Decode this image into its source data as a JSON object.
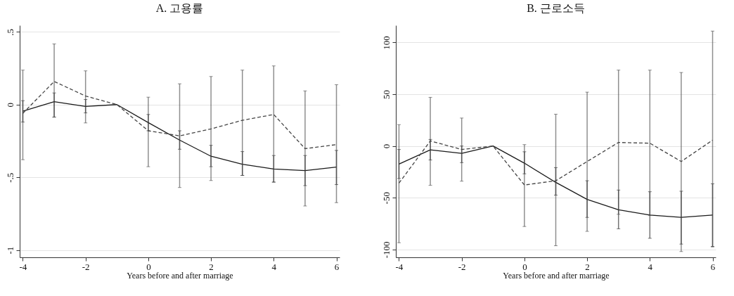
{
  "chart_data": [
    {
      "type": "line",
      "title": "A.  고용률",
      "xlabel": "Years before and after marriage",
      "x": [
        -4,
        -3,
        -2,
        -1,
        0,
        1,
        2,
        3,
        4,
        5,
        6
      ],
      "xlim": [
        -4.1,
        6.1
      ],
      "xticks": [
        -4,
        -2,
        0,
        2,
        4,
        6
      ],
      "ylim": [
        -1.05,
        0.545
      ],
      "yticks": [
        {
          "value": 0.5,
          "label": ".5"
        },
        0,
        {
          "value": -0.5,
          "label": "-.5"
        },
        -1
      ],
      "grid": "y",
      "marker": "none",
      "series": [
        {
          "color": "#1a1a1a",
          "line_style": "solid",
          "values": [
            -0.045,
            0.02,
            -0.013,
            0,
            -0.124,
            -0.244,
            -0.355,
            -0.41,
            -0.443,
            -0.454,
            -0.43
          ],
          "errors": [
            [
              -0.12,
              0.027
            ],
            [
              -0.086,
              0.08
            ],
            [
              -0.057,
              0.035
            ],
            null,
            [
              -0.18,
              -0.068
            ],
            [
              -0.307,
              -0.18
            ],
            [
              -0.427,
              -0.28
            ],
            [
              -0.487,
              -0.323
            ],
            [
              -0.533,
              -0.35
            ],
            [
              -0.557,
              -0.35
            ],
            [
              -0.55,
              -0.315
            ]
          ]
        },
        {
          "color": "#444444",
          "line_style": "dashed",
          "values": [
            -0.06,
            0.159,
            0.059,
            0,
            -0.18,
            -0.215,
            -0.167,
            -0.108,
            -0.068,
            -0.303,
            -0.275
          ],
          "errors": [
            [
              -0.379,
              0.237
            ],
            [
              -0.086,
              0.417
            ],
            [
              -0.126,
              0.232
            ],
            null,
            [
              -0.427,
              0.051
            ],
            [
              -0.57,
              0.143
            ],
            [
              -0.522,
              0.193
            ],
            [
              -0.487,
              0.237
            ],
            [
              -0.533,
              0.266
            ],
            [
              -0.697,
              0.094
            ],
            [
              -0.674,
              0.137
            ]
          ]
        }
      ]
    },
    {
      "type": "line",
      "title": "B.  근로소득",
      "xlabel": "Years before and after marriage",
      "x": [
        -4,
        -3,
        -2,
        -1,
        0,
        1,
        2,
        3,
        4,
        5,
        6
      ],
      "xlim": [
        -4.1,
        6.1
      ],
      "xticks": [
        -4,
        -2,
        0,
        2,
        4,
        6
      ],
      "ylim": [
        -107.6,
        116.6
      ],
      "yticks": [
        100,
        50,
        0,
        -50,
        -100
      ],
      "grid": "y",
      "marker": "none",
      "series": [
        {
          "color": "#1a1a1a",
          "line_style": "solid",
          "values": [
            -17.5,
            -3.8,
            -7.2,
            0,
            -16.6,
            -35.2,
            -51.6,
            -61.7,
            -66.8,
            -69,
            -66.8
          ],
          "errors": [
            [
              -31.4,
              -3.4
            ],
            [
              -13.5,
              6.3
            ],
            [
              -16.1,
              0
            ],
            null,
            [
              -26.9,
              -5.6
            ],
            [
              -47.5,
              -20.9
            ],
            [
              -69,
              -33.6
            ],
            [
              -80,
              -42.6
            ],
            [
              -89.2,
              -44.2
            ],
            [
              -94.8,
              -43.7
            ],
            [
              -97.1,
              -36.5
            ]
          ]
        },
        {
          "color": "#444444",
          "line_style": "dashed",
          "values": [
            -35.9,
            4.9,
            -3.4,
            0,
            -37.7,
            -33.6,
            -15,
            3.4,
            2.7,
            -15,
            5.6
          ],
          "errors": [
            [
              -93.5,
              20.6
            ],
            [
              -38,
              47
            ],
            [
              -34,
              27
            ],
            null,
            [
              -77.8,
              1.3
            ],
            [
              -96.4,
              30.7
            ],
            [
              -82.5,
              52
            ],
            [
              -66,
              73.3
            ],
            [
              -67,
              73.3
            ],
            [
              -102,
              71
            ],
            [
              -97.5,
              111
            ]
          ]
        }
      ]
    }
  ]
}
